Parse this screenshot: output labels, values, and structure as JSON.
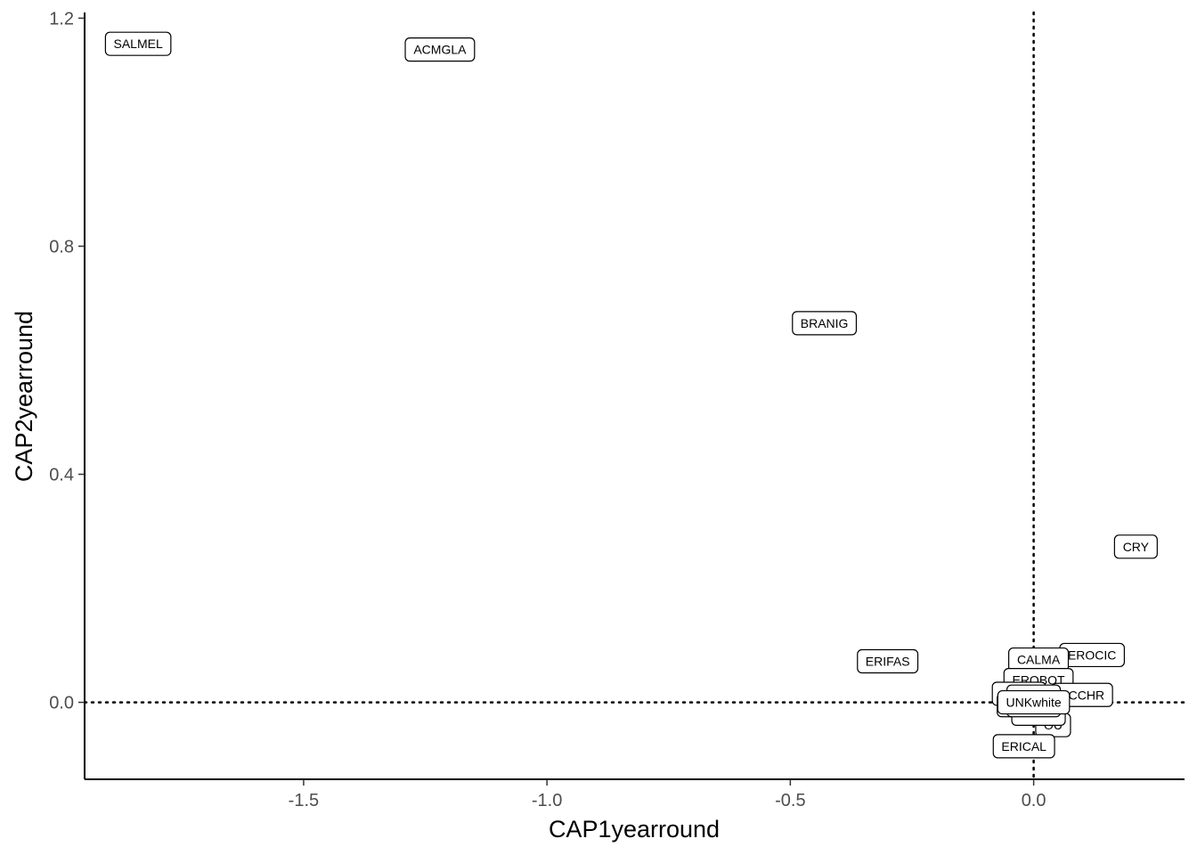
{
  "chart_data": {
    "type": "scatter",
    "title": "",
    "xlabel": "CAP1yearround",
    "ylabel": "CAP2yearround",
    "xlim": [
      -1.95,
      0.31
    ],
    "ylim": [
      -0.135,
      1.21
    ],
    "x_ticks": [
      {
        "value": -1.5,
        "label": "-1.5"
      },
      {
        "value": -1.0,
        "label": "-1.0"
      },
      {
        "value": -0.5,
        "label": "-0.5"
      },
      {
        "value": 0.0,
        "label": "0.0"
      }
    ],
    "y_ticks": [
      {
        "value": 0.0,
        "label": "0.0"
      },
      {
        "value": 0.4,
        "label": "0.4"
      },
      {
        "value": 0.8,
        "label": "0.8"
      },
      {
        "value": 1.2,
        "label": "1.2"
      }
    ],
    "reference_lines": {
      "x": 0.0,
      "y": 0.0,
      "style": "dotted"
    },
    "grid": false,
    "legend": "none",
    "points": [
      {
        "label": "SALMEL",
        "x": -1.84,
        "y": 1.155
      },
      {
        "label": "ACMGLA",
        "x": -1.22,
        "y": 1.145
      },
      {
        "label": "BRANIG",
        "x": -0.43,
        "y": 0.665
      },
      {
        "label": "CRY",
        "x": 0.21,
        "y": 0.273
      },
      {
        "label": "ERIFAS",
        "x": -0.3,
        "y": 0.072
      },
      {
        "label": "EROCIC",
        "x": 0.12,
        "y": 0.083
      },
      {
        "label": "CALMA",
        "x": 0.01,
        "y": 0.075
      },
      {
        "label": "EROBOT",
        "x": 0.01,
        "y": 0.039
      },
      {
        "label": "ECCHR",
        "x": 0.1,
        "y": 0.013
      },
      {
        "label": "",
        "x": -0.03,
        "y": 0.015
      },
      {
        "label": "",
        "x": 0.0,
        "y": 0.01
      },
      {
        "label": "",
        "x": -0.02,
        "y": -0.005
      },
      {
        "label": "OU",
        "x": 0.04,
        "y": -0.04
      },
      {
        "label": "",
        "x": 0.01,
        "y": -0.02
      },
      {
        "label": "",
        "x": 0.0,
        "y": -0.005
      },
      {
        "label": "UNKwhite",
        "x": 0.0,
        "y": 0.0
      },
      {
        "label": "ERICAL",
        "x": -0.02,
        "y": -0.077
      }
    ]
  }
}
